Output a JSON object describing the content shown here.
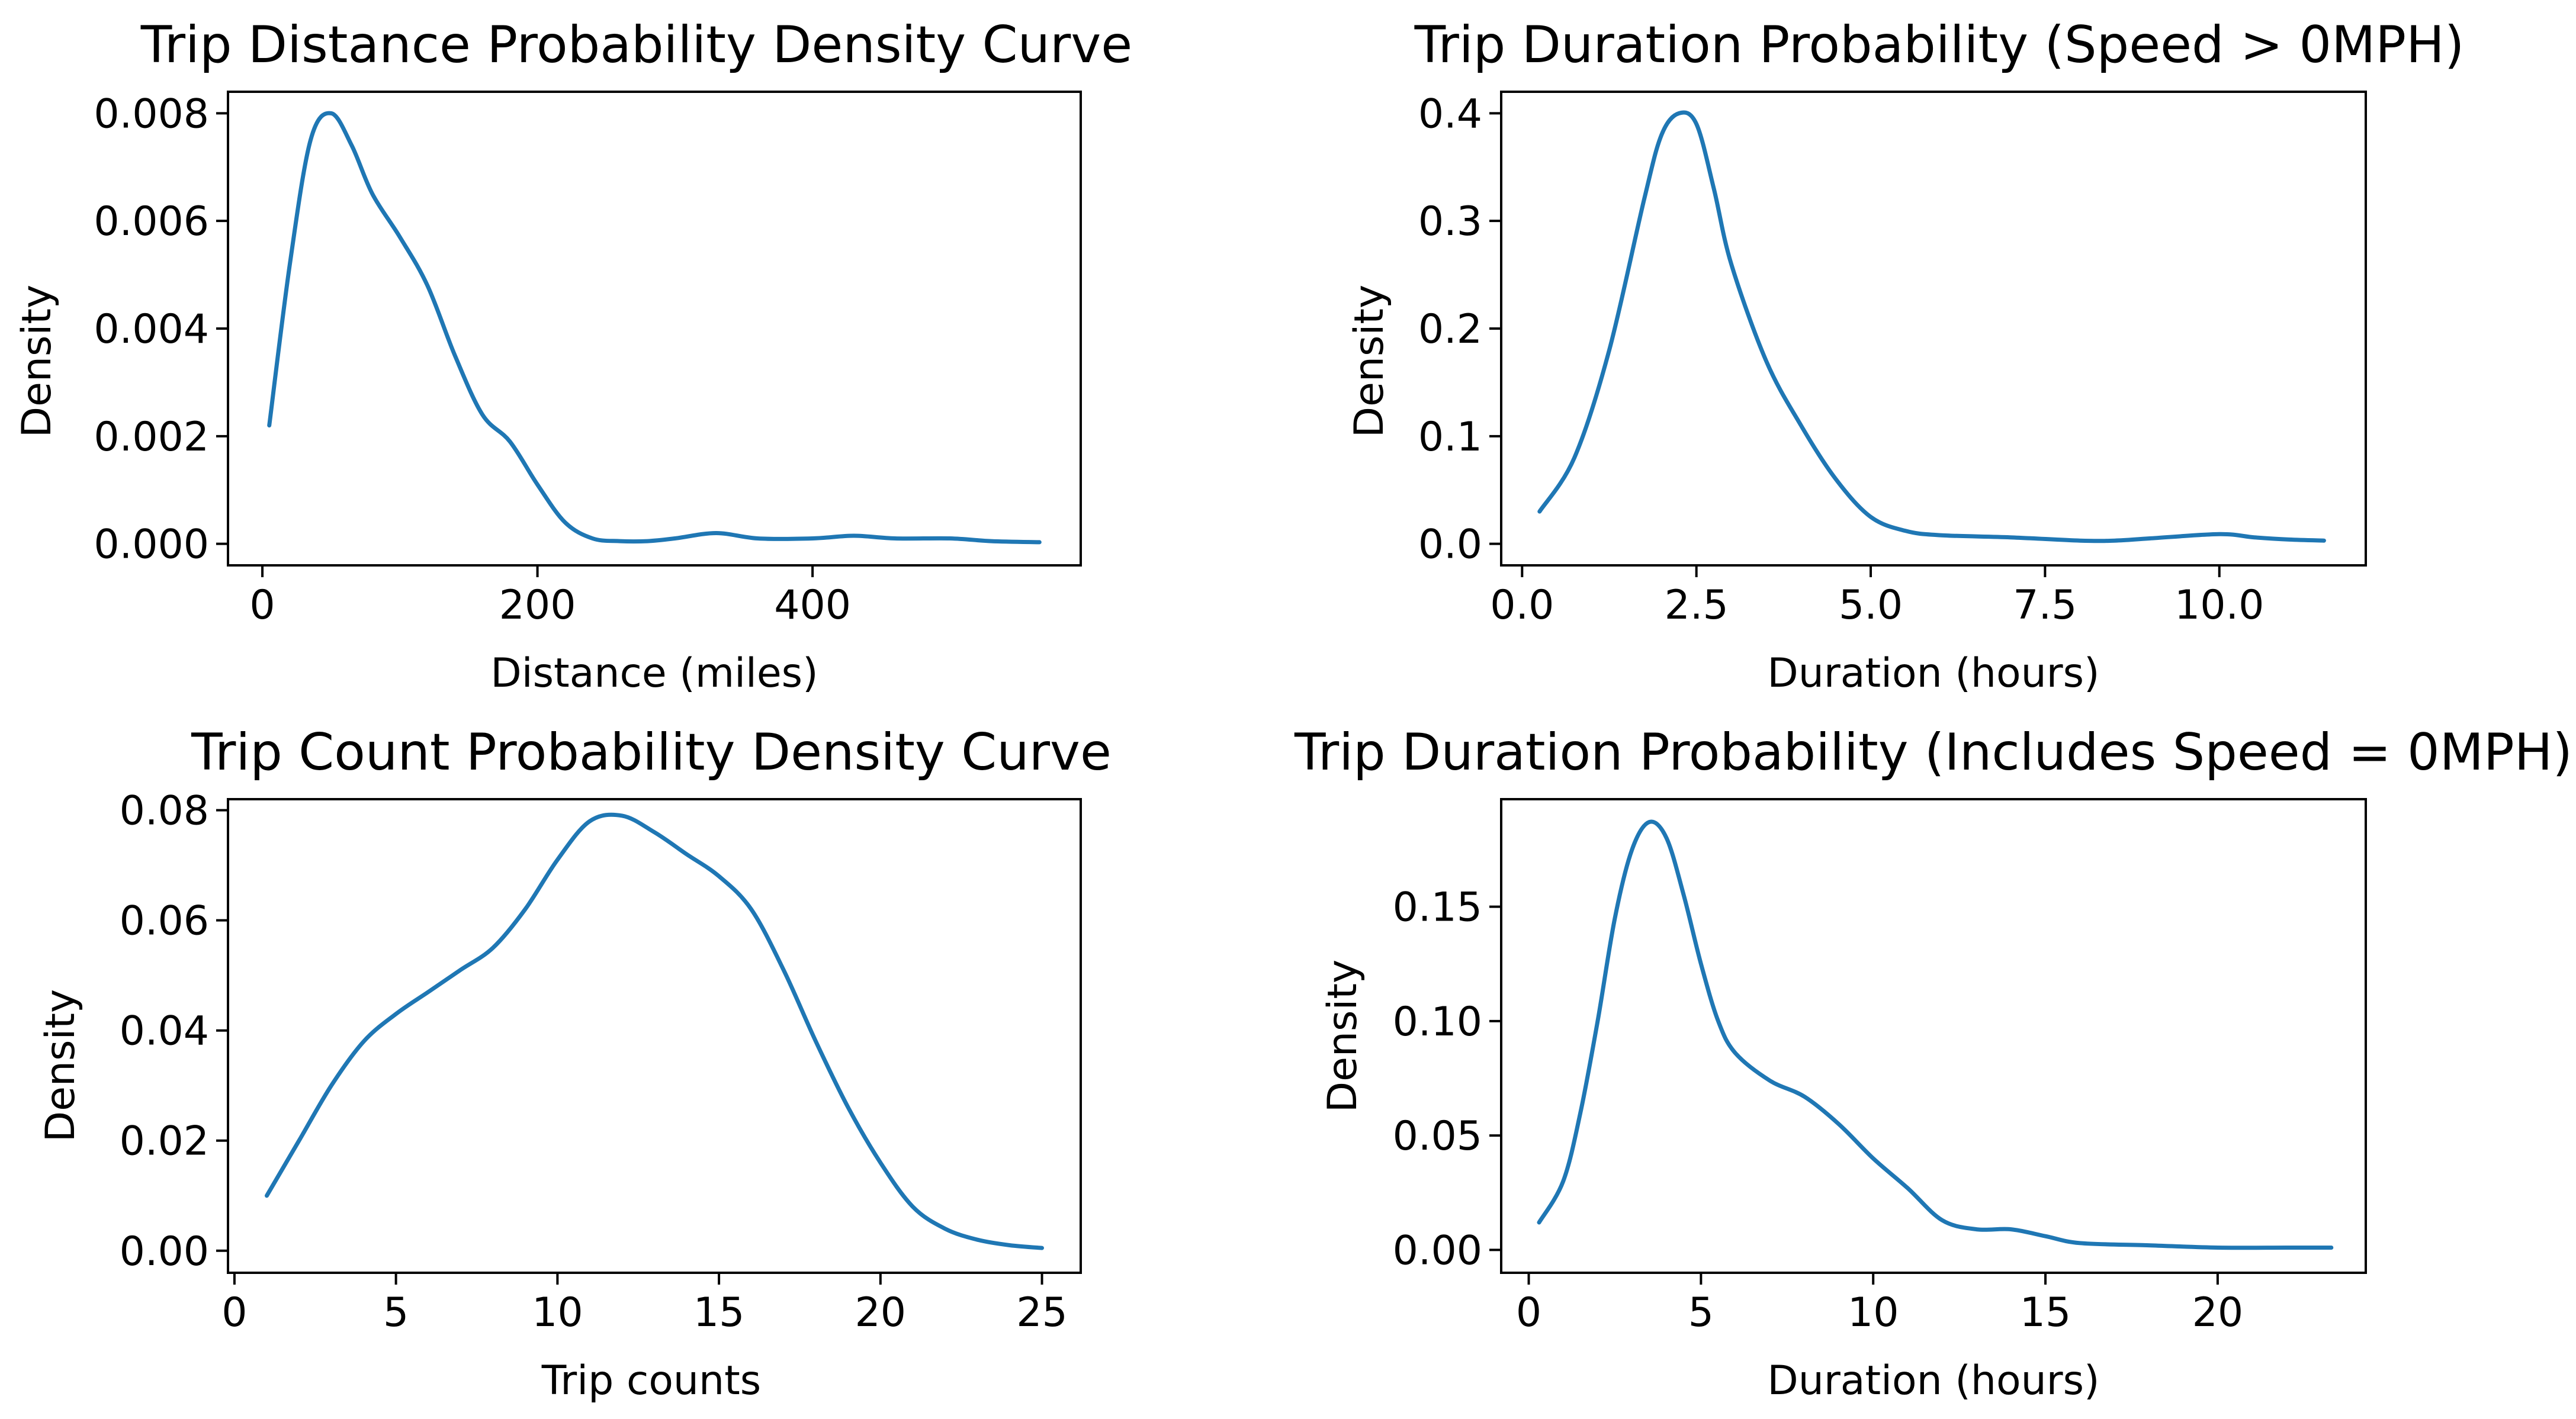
{
  "figure": {
    "background": "#ffffff",
    "line_color": "#1f77b4",
    "axis_color": "#000000"
  },
  "chart_data": [
    {
      "type": "line",
      "title": "Trip Distance Probability Density Curve",
      "xlabel": "Distance (miles)",
      "ylabel": "Density",
      "xlim": [
        -25,
        595
      ],
      "ylim": [
        -0.0004,
        0.0084
      ],
      "xticks": [
        0,
        200,
        400
      ],
      "xtick_labels": [
        "0",
        "200",
        "400"
      ],
      "yticks": [
        0.0,
        0.002,
        0.004,
        0.006,
        0.008
      ],
      "ytick_labels": [
        "0.000",
        "0.002",
        "0.004",
        "0.006",
        "0.008"
      ],
      "series": [
        {
          "name": "Density",
          "x": [
            5,
            20,
            35,
            50,
            65,
            80,
            100,
            120,
            140,
            160,
            180,
            200,
            220,
            240,
            260,
            280,
            300,
            330,
            360,
            400,
            430,
            460,
            500,
            530,
            565
          ],
          "y": [
            0.0022,
            0.0052,
            0.0075,
            0.008,
            0.0074,
            0.0065,
            0.0057,
            0.0048,
            0.0035,
            0.0024,
            0.0019,
            0.0011,
            0.0004,
            0.0001,
            5e-05,
            5e-05,
            0.0001,
            0.0002,
            0.0001,
            0.0001,
            0.00015,
            0.0001,
            0.0001,
            5e-05,
            3e-05
          ]
        }
      ]
    },
    {
      "type": "line",
      "title": "Trip Duration Probability (Speed > 0MPH)",
      "xlabel": "Duration (hours)",
      "ylabel": "Density",
      "xlim": [
        -0.3,
        12.1
      ],
      "ylim": [
        -0.02,
        0.42
      ],
      "xticks": [
        0.0,
        2.5,
        5.0,
        7.5,
        10.0
      ],
      "xtick_labels": [
        "0.0",
        "2.5",
        "5.0",
        "7.5",
        "10.0"
      ],
      "yticks": [
        0.0,
        0.1,
        0.2,
        0.3,
        0.4
      ],
      "ytick_labels": [
        "0.0",
        "0.1",
        "0.2",
        "0.3",
        "0.4"
      ],
      "series": [
        {
          "name": "Density",
          "x": [
            0.25,
            0.75,
            1.25,
            1.75,
            2.0,
            2.25,
            2.5,
            2.75,
            3.0,
            3.5,
            4.0,
            4.5,
            5.0,
            5.5,
            6.0,
            7.0,
            8.0,
            8.5,
            9.0,
            10.0,
            10.5,
            11.0,
            11.5
          ],
          "y": [
            0.03,
            0.08,
            0.18,
            0.32,
            0.38,
            0.4,
            0.39,
            0.33,
            0.26,
            0.17,
            0.11,
            0.06,
            0.025,
            0.012,
            0.008,
            0.006,
            0.003,
            0.003,
            0.005,
            0.009,
            0.006,
            0.004,
            0.003
          ]
        }
      ]
    },
    {
      "type": "line",
      "title": "Trip Count Probability Density Curve",
      "xlabel": "Trip counts",
      "ylabel": "Density",
      "xlim": [
        -0.2,
        26.2
      ],
      "ylim": [
        -0.004,
        0.082
      ],
      "xticks": [
        0,
        5,
        10,
        15,
        20,
        25
      ],
      "xtick_labels": [
        "0",
        "5",
        "10",
        "15",
        "20",
        "25"
      ],
      "yticks": [
        0.0,
        0.02,
        0.04,
        0.06,
        0.08
      ],
      "ytick_labels": [
        "0.00",
        "0.02",
        "0.04",
        "0.06",
        "0.08"
      ],
      "series": [
        {
          "name": "Density",
          "x": [
            1,
            2,
            3,
            4,
            5,
            6,
            7,
            8,
            9,
            10,
            11,
            12,
            13,
            14,
            15,
            16,
            17,
            18,
            19,
            20,
            21,
            22,
            23,
            24,
            25
          ],
          "y": [
            0.01,
            0.02,
            0.03,
            0.038,
            0.043,
            0.047,
            0.051,
            0.055,
            0.062,
            0.071,
            0.078,
            0.079,
            0.076,
            0.072,
            0.068,
            0.062,
            0.051,
            0.038,
            0.026,
            0.016,
            0.008,
            0.004,
            0.002,
            0.001,
            0.0005
          ]
        }
      ]
    },
    {
      "type": "line",
      "title": "Trip Duration Probability (Includes Speed = 0MPH)",
      "xlabel": "Duration (hours)",
      "ylabel": "Density",
      "xlim": [
        -0.8,
        24.3
      ],
      "ylim": [
        -0.01,
        0.197
      ],
      "xticks": [
        0,
        5,
        10,
        15,
        20
      ],
      "xtick_labels": [
        "0",
        "5",
        "10",
        "15",
        "20"
      ],
      "yticks": [
        0.0,
        0.05,
        0.1,
        0.15
      ],
      "ytick_labels": [
        "0.00",
        "0.05",
        "0.10",
        "0.15"
      ],
      "series": [
        {
          "name": "Density",
          "x": [
            0.3,
            1.0,
            1.5,
            2.0,
            2.5,
            3.0,
            3.5,
            4.0,
            4.5,
            5.0,
            5.5,
            6.0,
            7.0,
            8.0,
            9.0,
            10.0,
            11.0,
            12.0,
            13.0,
            14.0,
            15.0,
            16.0,
            18.0,
            20.0,
            22.0,
            23.3
          ],
          "y": [
            0.012,
            0.03,
            0.06,
            0.1,
            0.145,
            0.175,
            0.187,
            0.18,
            0.155,
            0.125,
            0.1,
            0.086,
            0.074,
            0.067,
            0.055,
            0.04,
            0.027,
            0.013,
            0.009,
            0.009,
            0.006,
            0.003,
            0.002,
            0.001,
            0.001,
            0.001
          ]
        }
      ]
    }
  ]
}
